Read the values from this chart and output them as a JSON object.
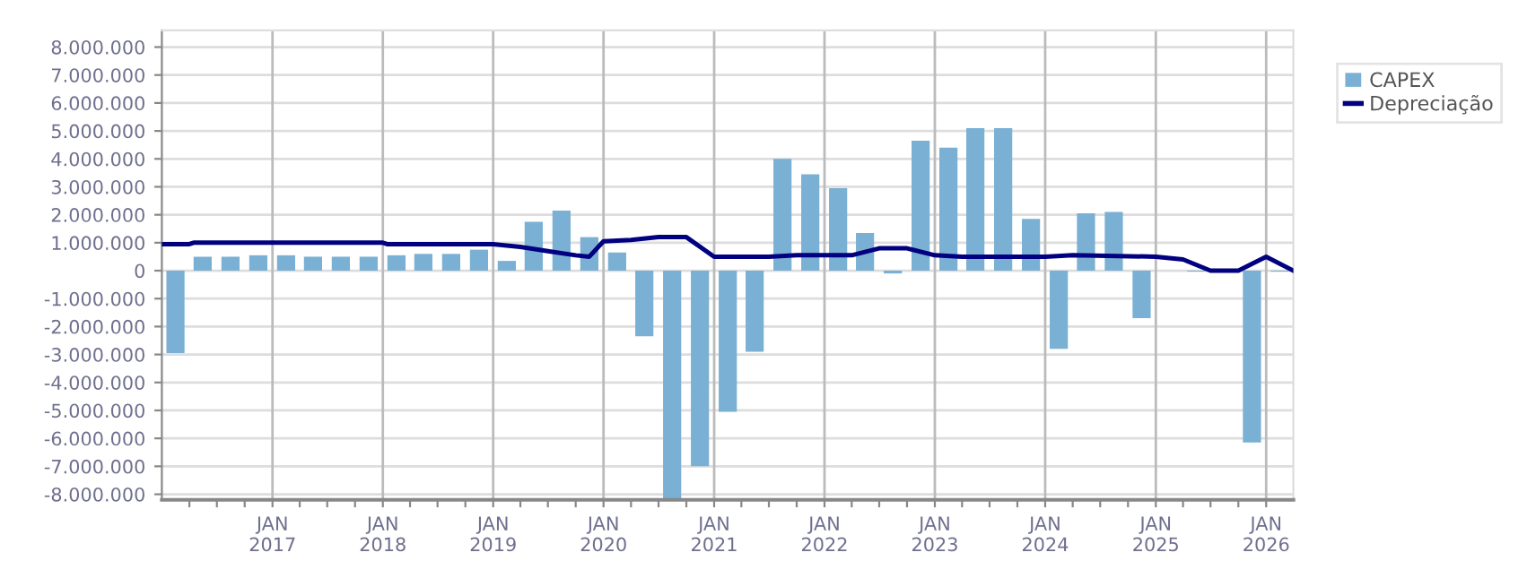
{
  "chart_data": {
    "type": "bar",
    "x": [
      "2016-02-15",
      "2016-05-15",
      "2016-08-15",
      "2016-11-15",
      "2017-02-15",
      "2017-05-15",
      "2017-08-15",
      "2017-11-15",
      "2018-02-15",
      "2018-05-15",
      "2018-08-15",
      "2018-11-15",
      "2019-02-15",
      "2019-05-15",
      "2019-08-15",
      "2019-11-15",
      "2020-02-15",
      "2020-05-15",
      "2020-08-15",
      "2020-11-15",
      "2021-02-15",
      "2021-05-15",
      "2021-08-15",
      "2021-11-15",
      "2022-02-15",
      "2022-05-15",
      "2022-08-15",
      "2022-11-15",
      "2023-02-15",
      "2023-05-15",
      "2023-08-15",
      "2023-11-15",
      "2024-02-15",
      "2024-05-15",
      "2024-08-15",
      "2024-11-15",
      "2025-02-15",
      "2025-05-15",
      "2025-08-15",
      "2025-11-15",
      "2026-02-15"
    ],
    "series": [
      {
        "name": "CAPEX",
        "color": "#7ab0d3",
        "values": [
          -2950000,
          500000,
          500000,
          550000,
          550000,
          500000,
          500000,
          500000,
          550000,
          600000,
          600000,
          750000,
          350000,
          1750000,
          2150000,
          1200000,
          650000,
          -2350000,
          -8200000,
          -7000000,
          -5050000,
          -2900000,
          4000000,
          3450000,
          2950000,
          1350000,
          -100000,
          4650000,
          4400000,
          5100000,
          5100000,
          1850000,
          -2800000,
          2050000,
          2100000,
          -1700000,
          0,
          -30000,
          0,
          -6150000,
          -30000
        ]
      },
      {
        "name": "Depreciação",
        "type": "line",
        "color": "#000080",
        "marker": "none",
        "line_style": "solid",
        "x": [
          "2016-01-01",
          "2016-04-01",
          "2016-04-15",
          "2018-01-01",
          "2018-01-15",
          "2019-01-01",
          "2019-04-01",
          "2019-07-01",
          "2019-10-01",
          "2019-11-15",
          "2020-01-01",
          "2020-04-01",
          "2020-07-01",
          "2020-10-01",
          "2021-01-01",
          "2021-06-30",
          "2021-10-01",
          "2022-04-01",
          "2022-07-01",
          "2022-10-01",
          "2023-01-01",
          "2023-04-01",
          "2024-01-01",
          "2024-04-01",
          "2025-01-01",
          "2025-04-01",
          "2025-07-01",
          "2025-10-01",
          "2026-01-01",
          "2026-04-01"
        ],
        "values": [
          950000,
          950000,
          1000000,
          1000000,
          950000,
          950000,
          850000,
          700000,
          550000,
          500000,
          1050000,
          1100000,
          1200000,
          1200000,
          500000,
          500000,
          550000,
          550000,
          800000,
          800000,
          550000,
          500000,
          500000,
          550000,
          500000,
          400000,
          0,
          0,
          500000,
          0
        ]
      }
    ],
    "xlim": [
      "2016-01-01",
      "2026-04-01"
    ],
    "xticks": [
      {
        "value": "2016-04-01",
        "label": null
      },
      {
        "value": "2016-07-01",
        "label": null
      },
      {
        "value": "2016-10-01",
        "label": null
      },
      {
        "value": "2017-01-01",
        "label": "JAN\n2017"
      },
      {
        "value": "2017-04-01",
        "label": null
      },
      {
        "value": "2017-07-01",
        "label": null
      },
      {
        "value": "2017-10-01",
        "label": null
      },
      {
        "value": "2018-01-01",
        "label": "JAN\n2018"
      },
      {
        "value": "2018-04-01",
        "label": null
      },
      {
        "value": "2018-07-01",
        "label": null
      },
      {
        "value": "2018-10-01",
        "label": null
      },
      {
        "value": "2019-01-01",
        "label": "JAN\n2019"
      },
      {
        "value": "2019-04-01",
        "label": null
      },
      {
        "value": "2019-07-01",
        "label": null
      },
      {
        "value": "2019-10-01",
        "label": null
      },
      {
        "value": "2020-01-01",
        "label": "JAN\n2020"
      },
      {
        "value": "2020-04-01",
        "label": null
      },
      {
        "value": "2020-07-01",
        "label": null
      },
      {
        "value": "2020-10-01",
        "label": null
      },
      {
        "value": "2021-01-01",
        "label": "JAN\n2021"
      },
      {
        "value": "2021-04-01",
        "label": null
      },
      {
        "value": "2021-07-01",
        "label": null
      },
      {
        "value": "2021-10-01",
        "label": null
      },
      {
        "value": "2022-01-01",
        "label": "JAN\n2022"
      },
      {
        "value": "2022-04-01",
        "label": null
      },
      {
        "value": "2022-07-01",
        "label": null
      },
      {
        "value": "2022-10-01",
        "label": null
      },
      {
        "value": "2023-01-01",
        "label": "JAN\n2023"
      },
      {
        "value": "2023-04-01",
        "label": null
      },
      {
        "value": "2023-07-01",
        "label": null
      },
      {
        "value": "2023-10-01",
        "label": null
      },
      {
        "value": "2024-01-01",
        "label": "JAN\n2024"
      },
      {
        "value": "2024-04-01",
        "label": null
      },
      {
        "value": "2024-07-01",
        "label": null
      },
      {
        "value": "2024-10-01",
        "label": null
      },
      {
        "value": "2025-01-01",
        "label": "JAN\n2025"
      },
      {
        "value": "2025-04-01",
        "label": null
      },
      {
        "value": "2025-07-01",
        "label": null
      },
      {
        "value": "2025-10-01",
        "label": null
      },
      {
        "value": "2026-01-01",
        "label": "JAN\n2026"
      }
    ],
    "ylim": [
      -8200000,
      8600000
    ],
    "yticks": [
      {
        "value": -8000000,
        "label": "-8.000.000"
      },
      {
        "value": -7000000,
        "label": "-7.000.000"
      },
      {
        "value": -6000000,
        "label": "-6.000.000"
      },
      {
        "value": -5000000,
        "label": "-5.000.000"
      },
      {
        "value": -4000000,
        "label": "-4.000.000"
      },
      {
        "value": -3000000,
        "label": "-3.000.000"
      },
      {
        "value": -2000000,
        "label": "-2.000.000"
      },
      {
        "value": -1000000,
        "label": "-1.000.000"
      },
      {
        "value": 0,
        "label": "0"
      },
      {
        "value": 1000000,
        "label": "1.000.000"
      },
      {
        "value": 2000000,
        "label": "2.000.000"
      },
      {
        "value": 3000000,
        "label": "3.000.000"
      },
      {
        "value": 4000000,
        "label": "4.000.000"
      },
      {
        "value": 5000000,
        "label": "5.000.000"
      },
      {
        "value": 6000000,
        "label": "6.000.000"
      },
      {
        "value": 7000000,
        "label": "7.000.000"
      },
      {
        "value": 8000000,
        "label": "8.000.000"
      }
    ],
    "grid": true,
    "legend": "top right"
  }
}
